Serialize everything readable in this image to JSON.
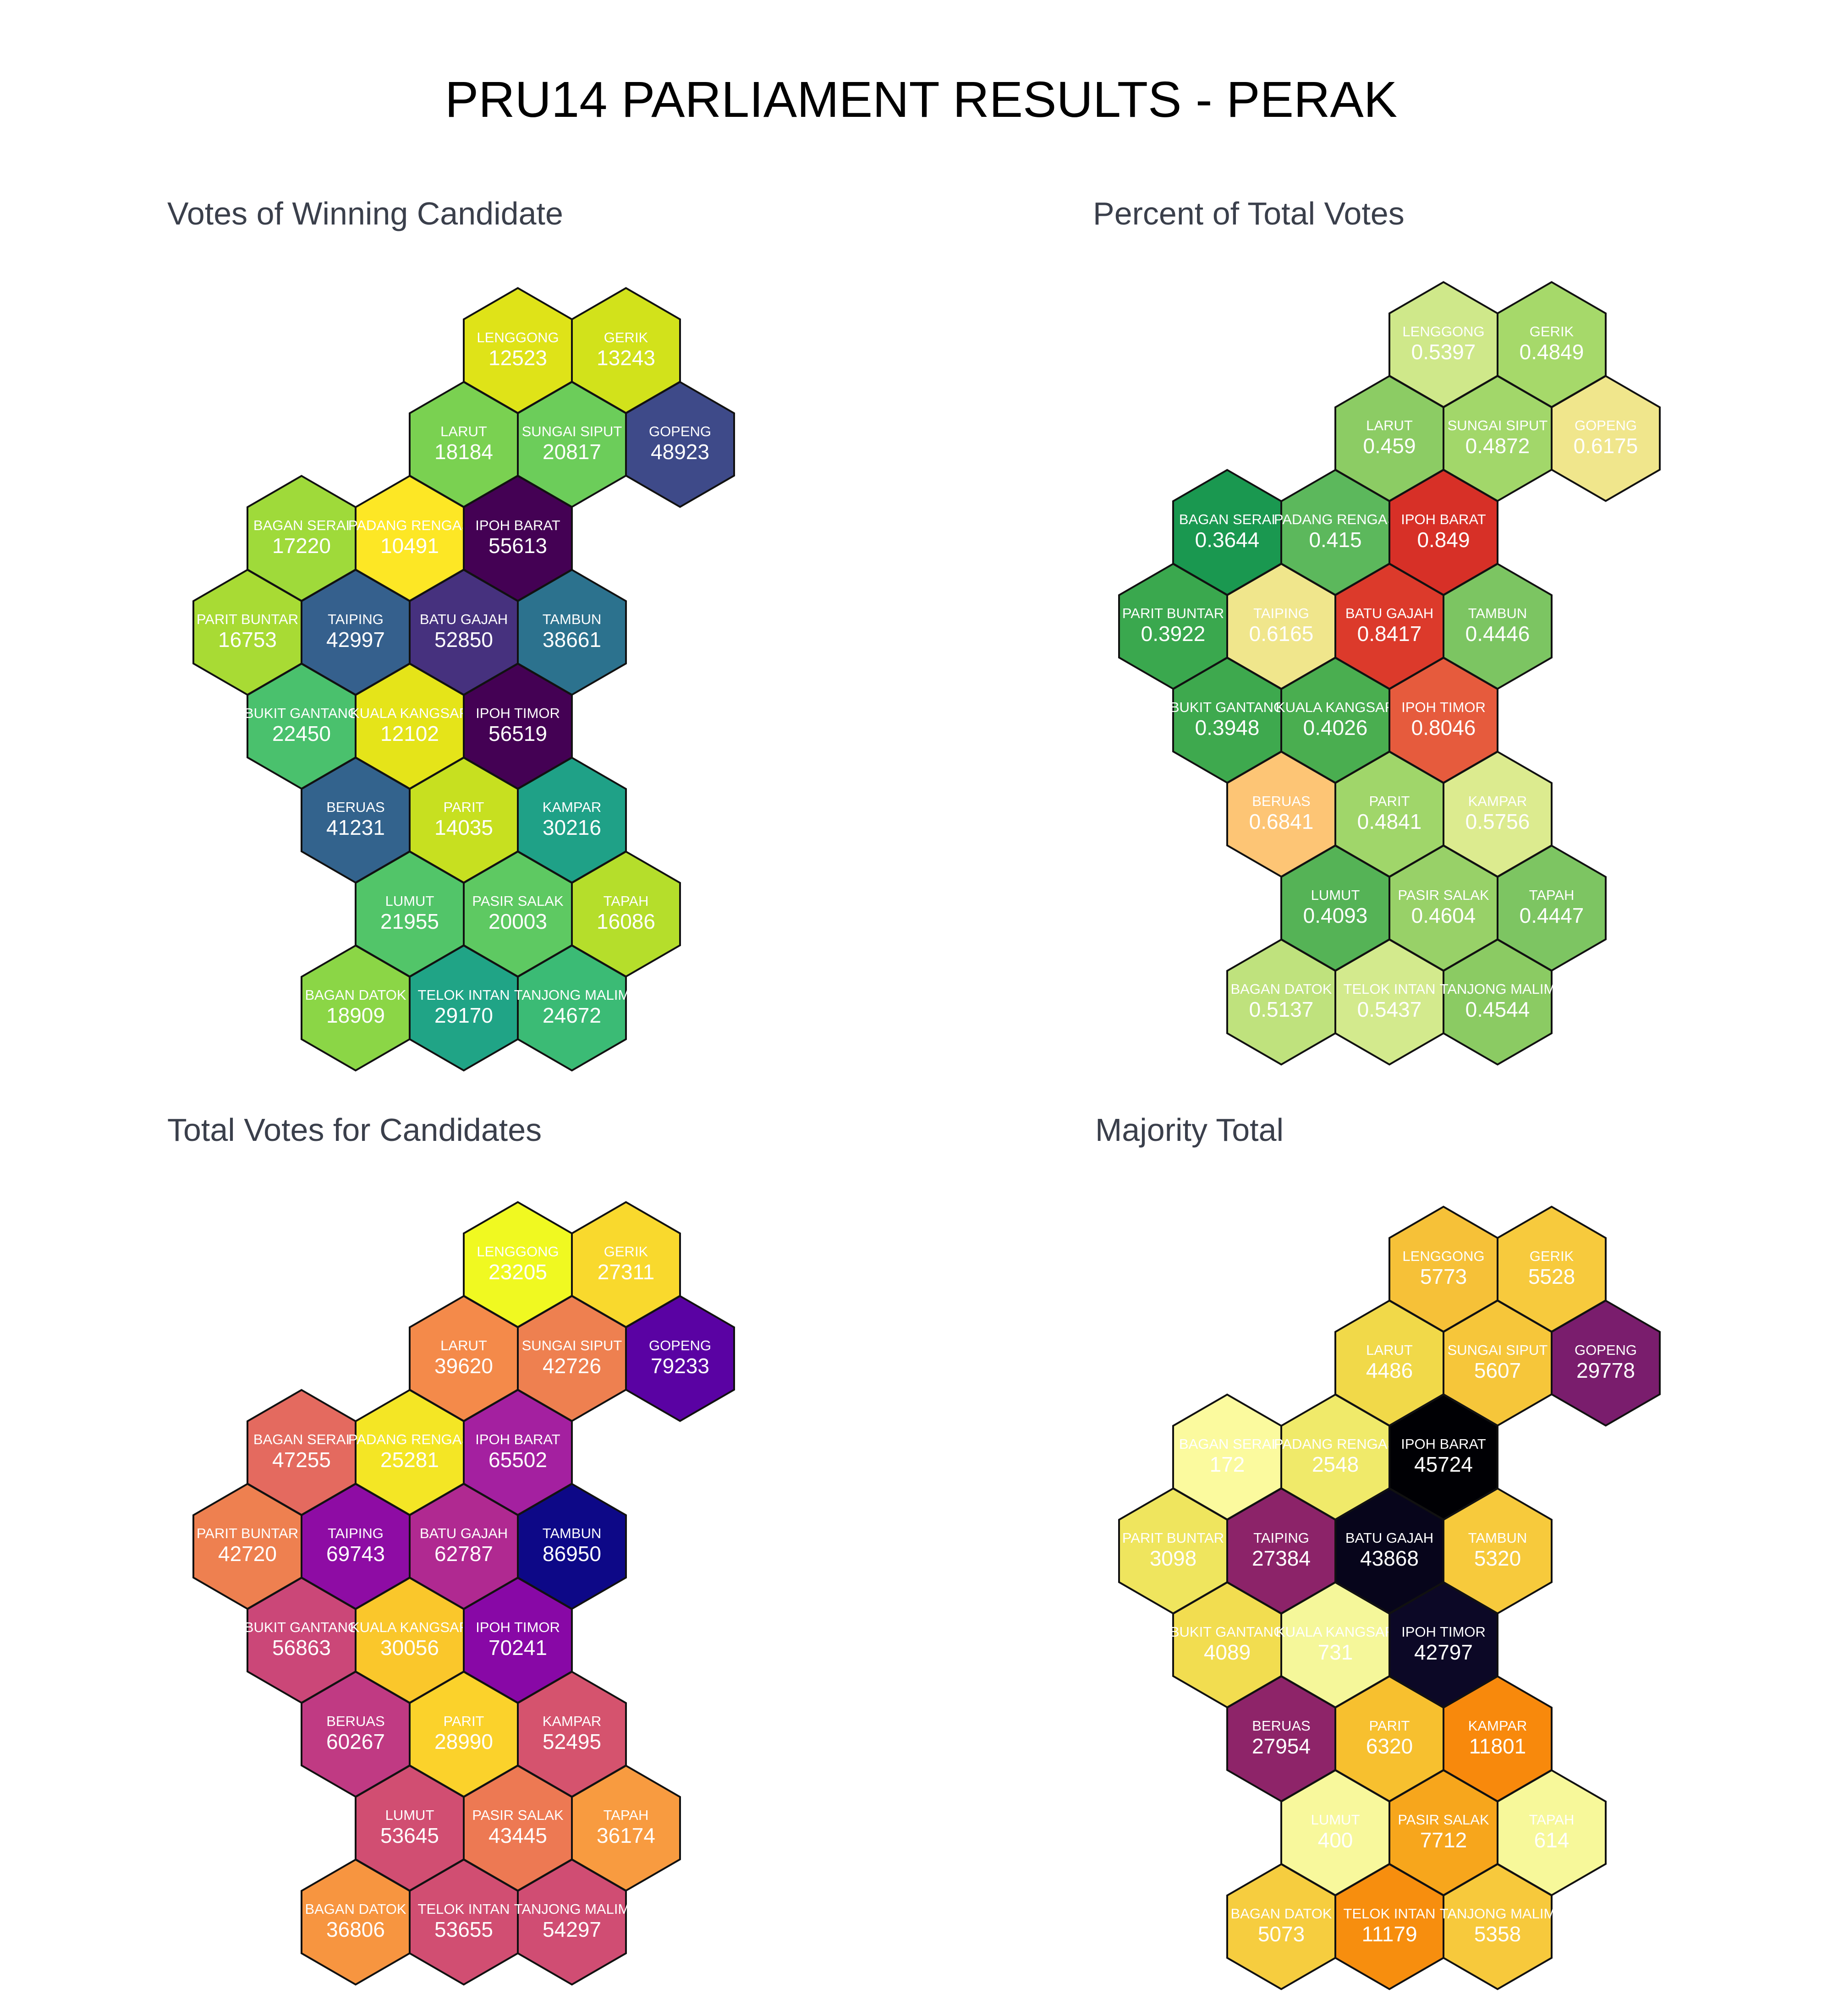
{
  "title": "PRU14 PARLIAMENT RESULTS - PERAK",
  "seats": [
    {
      "id": "LENGGONG",
      "col": 2.5,
      "row": 0
    },
    {
      "id": "GERIK",
      "col": 3.5,
      "row": 0
    },
    {
      "id": "LARUT",
      "col": 2,
      "row": 1
    },
    {
      "id": "SUNGAI SIPUT",
      "col": 3,
      "row": 1
    },
    {
      "id": "GOPENG",
      "col": 4,
      "row": 1
    },
    {
      "id": "BAGAN SERAI",
      "col": 0.5,
      "row": 2
    },
    {
      "id": "PADANG RENGAS",
      "col": 1.5,
      "row": 2
    },
    {
      "id": "IPOH BARAT",
      "col": 2.5,
      "row": 2
    },
    {
      "id": "PARIT BUNTAR",
      "col": 0,
      "row": 3
    },
    {
      "id": "TAIPING",
      "col": 1,
      "row": 3
    },
    {
      "id": "BATU GAJAH",
      "col": 2,
      "row": 3
    },
    {
      "id": "TAMBUN",
      "col": 3,
      "row": 3
    },
    {
      "id": "BUKIT GANTANG",
      "col": 0.5,
      "row": 4
    },
    {
      "id": "KUALA KANGSAR",
      "col": 1.5,
      "row": 4
    },
    {
      "id": "IPOH TIMOR",
      "col": 2.5,
      "row": 4
    },
    {
      "id": "BERUAS",
      "col": 1,
      "row": 5
    },
    {
      "id": "PARIT",
      "col": 2,
      "row": 5
    },
    {
      "id": "KAMPAR",
      "col": 3,
      "row": 5
    },
    {
      "id": "LUMUT",
      "col": 1.5,
      "row": 6
    },
    {
      "id": "PASIR SALAK",
      "col": 2.5,
      "row": 6
    },
    {
      "id": "TAPAH",
      "col": 3.5,
      "row": 6
    },
    {
      "id": "BAGAN DATOK",
      "col": 1,
      "row": 7
    },
    {
      "id": "TELOK INTAN",
      "col": 2,
      "row": 7
    },
    {
      "id": "TANJONG MALIM",
      "col": 3,
      "row": 7
    }
  ],
  "panels": [
    {
      "title": "Votes of Winning Candidate",
      "values": [
        "12523",
        "13243",
        "18184",
        "20817",
        "48923",
        "17220",
        "10491",
        "55613",
        "16753",
        "42997",
        "52850",
        "38661",
        "22450",
        "12102",
        "56519",
        "41231",
        "14035",
        "30216",
        "21955",
        "20003",
        "16086",
        "18909",
        "29170",
        "24672"
      ],
      "colors": [
        "#dfe318",
        "#d2e21b",
        "#7ad151",
        "#6ccd5a",
        "#3e4a89",
        "#9fda3a",
        "#fde725",
        "#440154",
        "#a8db34",
        "#35608d",
        "#46317e",
        "#2c728e",
        "#4ac16d",
        "#e5e419",
        "#440154",
        "#33638d",
        "#c7e020",
        "#1fa187",
        "#52c569",
        "#5ec962",
        "#b5de2b",
        "#8bd646",
        "#20a486",
        "#3bbb75"
      ],
      "text_colors": [
        "#ffffff",
        "#ffffff",
        "#ffffff",
        "#ffffff",
        "#ffffff",
        "#ffffff",
        "#ffffff",
        "#ffffff",
        "#ffffff",
        "#ffffff",
        "#ffffff",
        "#ffffff",
        "#ffffff",
        "#ffffff",
        "#ffffff",
        "#ffffff",
        "#ffffff",
        "#ffffff",
        "#ffffff",
        "#ffffff",
        "#ffffff",
        "#ffffff",
        "#ffffff",
        "#ffffff"
      ]
    },
    {
      "title": "Percent of Total Votes",
      "values": [
        "0.5397",
        "0.4849",
        "0.459",
        "0.4872",
        "0.6175",
        "0.3644",
        "0.415",
        "0.849",
        "0.3922",
        "0.6165",
        "0.8417",
        "0.4446",
        "0.3948",
        "0.4026",
        "0.8046",
        "0.6841",
        "0.4841",
        "0.5756",
        "0.4093",
        "0.4604",
        "0.4447",
        "0.5137",
        "0.5437",
        "0.4544"
      ],
      "colors": [
        "#cfe88a",
        "#a6d96a",
        "#8ccc64",
        "#a2d76a",
        "#f0e68c",
        "#1a9850",
        "#5cb85c",
        "#d73027",
        "#3aa84e",
        "#f0e68c",
        "#dc3a2b",
        "#7cc562",
        "#3ea94e",
        "#4aae50",
        "#e65b3d",
        "#fdc575",
        "#a0d66a",
        "#dceb8f",
        "#55b356",
        "#98d168",
        "#7dc562",
        "#bfe27d",
        "#d3ea8d",
        "#8bcb63"
      ],
      "text_colors": [
        "#ffffff",
        "#ffffff",
        "#ffffff",
        "#ffffff",
        "#ffffff",
        "#ffffff",
        "#ffffff",
        "#ffffff",
        "#ffffff",
        "#ffffff",
        "#ffffff",
        "#ffffff",
        "#ffffff",
        "#ffffff",
        "#ffffff",
        "#ffffff",
        "#ffffff",
        "#ffffff",
        "#ffffff",
        "#ffffff",
        "#ffffff",
        "#ffffff",
        "#ffffff",
        "#ffffff"
      ]
    },
    {
      "title": "Total Votes for Candidates",
      "values": [
        "23205",
        "27311",
        "39620",
        "42726",
        "79233",
        "47255",
        "25281",
        "65502",
        "42720",
        "69743",
        "62787",
        "86950",
        "56863",
        "30056",
        "70241",
        "60267",
        "28990",
        "52495",
        "53645",
        "43445",
        "36174",
        "36806",
        "53655",
        "54297"
      ],
      "colors": [
        "#f0f921",
        "#f9d92d",
        "#f48a4a",
        "#ee8050",
        "#5a02a3",
        "#e46a5f",
        "#f4e625",
        "#a420a0",
        "#ee8050",
        "#8e0ca4",
        "#b02991",
        "#0d0887",
        "#cb4778",
        "#fac72b",
        "#8808a6",
        "#c03a83",
        "#fbd22b",
        "#d5536e",
        "#d14e72",
        "#ed7953",
        "#f89b40",
        "#f79540",
        "#d14e72",
        "#d04d73"
      ],
      "text_colors": [
        "#ffffff",
        "#ffffff",
        "#ffffff",
        "#ffffff",
        "#ffffff",
        "#ffffff",
        "#ffffff",
        "#ffffff",
        "#ffffff",
        "#ffffff",
        "#ffffff",
        "#ffffff",
        "#ffffff",
        "#ffffff",
        "#ffffff",
        "#ffffff",
        "#ffffff",
        "#ffffff",
        "#ffffff",
        "#ffffff",
        "#ffffff",
        "#ffffff",
        "#ffffff",
        "#ffffff"
      ]
    },
    {
      "title": "Majority Total",
      "values": [
        "5773",
        "5528",
        "4486",
        "5607",
        "29778",
        "172",
        "2548",
        "45724",
        "3098",
        "27384",
        "43868",
        "5320",
        "4089",
        "731",
        "42797",
        "27954",
        "6320",
        "11801",
        "400",
        "7712",
        "614",
        "5073",
        "11179",
        "5358"
      ],
      "colors": [
        "#f6c138",
        "#f7ca3d",
        "#f1d949",
        "#f6c63a",
        "#7a1d6d",
        "#fbfa9e",
        "#f0ea6a",
        "#000004",
        "#efe55e",
        "#8c2369",
        "#07051b",
        "#f7ca3c",
        "#f2dd50",
        "#f5f79a",
        "#0c0826",
        "#8e2469",
        "#f7c02f",
        "#f8890c",
        "#f8f89c",
        "#f7a61c",
        "#f7f89a",
        "#f6cd3f",
        "#f78e0e",
        "#f7c93c"
      ],
      "text_colors": [
        "#ffffff",
        "#ffffff",
        "#ffffff",
        "#ffffff",
        "#ffffff",
        "#ffffff",
        "#ffffff",
        "#ffffff",
        "#ffffff",
        "#ffffff",
        "#ffffff",
        "#ffffff",
        "#ffffff",
        "#ffffff",
        "#ffffff",
        "#ffffff",
        "#ffffff",
        "#ffffff",
        "#ffffff",
        "#ffffff",
        "#ffffff",
        "#ffffff",
        "#ffffff",
        "#ffffff"
      ]
    }
  ]
}
